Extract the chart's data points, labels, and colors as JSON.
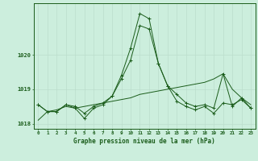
{
  "title": "Graphe pression niveau de la mer (hPa)",
  "bg_color": "#cceedd",
  "grid_color": "#bbddcc",
  "line_color": "#1a5c1a",
  "x_labels": [
    "0",
    "1",
    "2",
    "3",
    "4",
    "5",
    "6",
    "7",
    "8",
    "9",
    "10",
    "11",
    "12",
    "13",
    "14",
    "15",
    "16",
    "17",
    "18",
    "19",
    "20",
    "21",
    "22",
    "23"
  ],
  "x_values": [
    0,
    1,
    2,
    3,
    4,
    5,
    6,
    7,
    8,
    9,
    10,
    11,
    12,
    13,
    14,
    15,
    16,
    17,
    18,
    19,
    20,
    21,
    22,
    23
  ],
  "series1": [
    1018.55,
    1018.35,
    1018.35,
    1018.55,
    1018.45,
    1018.15,
    1018.45,
    1018.55,
    1018.8,
    1019.4,
    1020.2,
    1021.2,
    1021.05,
    1019.75,
    1019.1,
    1018.65,
    1018.5,
    1018.4,
    1018.5,
    1018.3,
    1018.6,
    1018.55,
    1018.7,
    1018.45
  ],
  "series2": [
    1018.55,
    1018.35,
    1018.35,
    1018.55,
    1018.5,
    1018.3,
    1018.5,
    1018.6,
    1018.8,
    1019.3,
    1019.85,
    1020.85,
    1020.75,
    1019.75,
    1019.1,
    1018.85,
    1018.6,
    1018.5,
    1018.55,
    1018.45,
    1019.45,
    1018.5,
    1018.75,
    1018.45
  ],
  "series3": [
    1018.1,
    1018.35,
    1018.4,
    1018.5,
    1018.45,
    1018.5,
    1018.55,
    1018.6,
    1018.65,
    1018.7,
    1018.75,
    1018.85,
    1018.9,
    1018.95,
    1019.0,
    1019.05,
    1019.1,
    1019.15,
    1019.2,
    1019.3,
    1019.45,
    1019.0,
    1018.75,
    1018.55
  ],
  "ylim": [
    1017.85,
    1021.5
  ],
  "yticks": [
    1018,
    1019,
    1020
  ],
  "marker": "+"
}
